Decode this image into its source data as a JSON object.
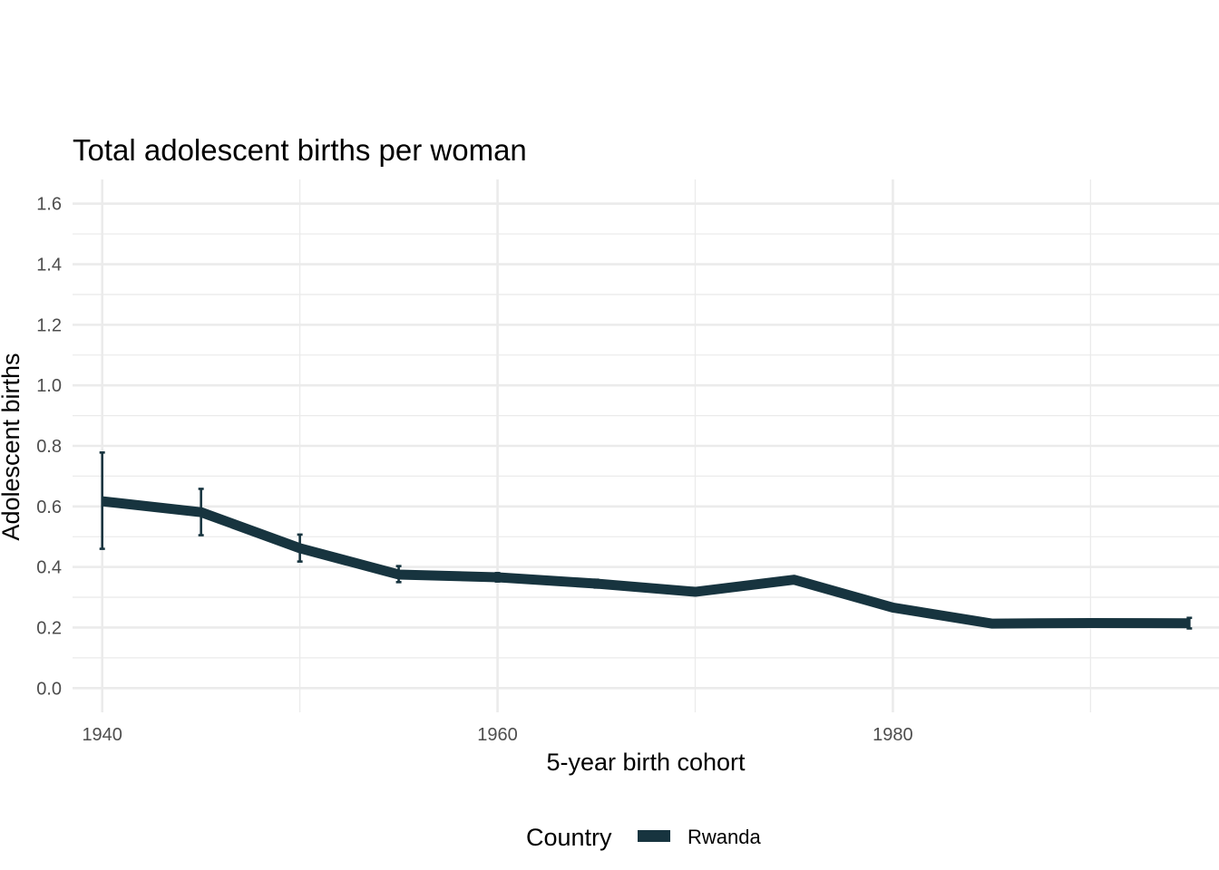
{
  "chart_data": {
    "type": "line",
    "title": "Total adolescent births per woman",
    "xlabel": "5-year birth cohort",
    "ylabel": "Adolescent births",
    "xlim": [
      1938.5,
      1996.5
    ],
    "ylim": [
      -0.08,
      1.68
    ],
    "x_ticks": [
      1940,
      1960,
      1980
    ],
    "x_tick_labels": [
      "1940",
      "1960",
      "1980"
    ],
    "x_minor_ticks": [
      1950,
      1970,
      1990
    ],
    "y_ticks": [
      0.0,
      0.2,
      0.4,
      0.6,
      0.8,
      1.0,
      1.2,
      1.4,
      1.6
    ],
    "y_tick_labels": [
      "0.0",
      "0.2",
      "0.4",
      "0.6",
      "0.8",
      "1.0",
      "1.2",
      "1.4",
      "1.6"
    ],
    "y_minor_ticks": [
      0.1,
      0.3,
      0.5,
      0.7,
      0.9,
      1.1,
      1.3,
      1.5
    ],
    "grid": true,
    "legend": {
      "title": "Country",
      "position": "bottom",
      "entries": [
        "Rwanda"
      ]
    },
    "series": [
      {
        "name": "Rwanda",
        "color": "#17343f",
        "x": [
          1940,
          1945,
          1950,
          1955,
          1960,
          1965,
          1970,
          1975,
          1980,
          1985,
          1990,
          1995
        ],
        "y": [
          0.617,
          0.581,
          0.462,
          0.375,
          0.366,
          0.345,
          0.318,
          0.358,
          0.266,
          0.213,
          0.215,
          0.214
        ],
        "lower": [
          0.46,
          0.505,
          0.418,
          0.35,
          0.352,
          0.332,
          0.31,
          0.35,
          0.258,
          0.205,
          0.207,
          0.197
        ],
        "upper": [
          0.778,
          0.658,
          0.507,
          0.403,
          0.38,
          0.358,
          0.326,
          0.366,
          0.274,
          0.221,
          0.223,
          0.232
        ]
      }
    ]
  }
}
